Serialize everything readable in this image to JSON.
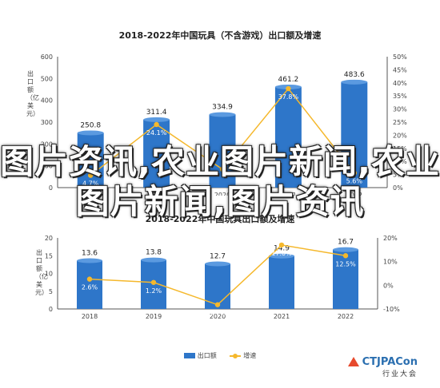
{
  "overlay_text": "图片资讯,农业图片新闻,农业图片新闻,图片资讯",
  "brand": {
    "name": "CTJPACon",
    "sub": "行业大会"
  },
  "colors": {
    "bar": "#2e76c9",
    "line": "#f5b82c"
  },
  "chart_data": [
    {
      "type": "bar",
      "title": "2018-2022年中国玩具（不含游戏）出口额及增速",
      "categories": [
        "2018",
        "2019",
        "2020",
        "2021",
        "2022"
      ],
      "series": [
        {
          "name": "出口额",
          "kind": "bar",
          "axis": "left",
          "values": [
            250.8,
            311.4,
            334.9,
            461.2,
            483.6
          ],
          "labels": [
            "250.8",
            "311.4",
            "334.9",
            "461.2",
            "483.6"
          ]
        },
        {
          "name": "增速",
          "kind": "line",
          "axis": "right",
          "values": [
            4.7,
            24.1,
            7.0,
            37.8,
            5.6
          ],
          "labels": [
            "4.7%",
            "24.1%",
            "",
            "37.8%",
            "5.6%"
          ]
        }
      ],
      "ylabel": "出口额（亿美元）",
      "ylim": [
        0,
        600
      ],
      "yticks": [
        "0",
        "100",
        "200",
        "300",
        "400",
        "500",
        "600"
      ],
      "y2lim": [
        0,
        50
      ],
      "y2ticks": [
        "0%",
        "5%",
        "10%",
        "15%",
        "20%",
        "25%",
        "30%",
        "35%",
        "40%",
        "45%",
        "50%"
      ]
    },
    {
      "type": "bar",
      "title": "2018-2022年中国玩具出口额及增速",
      "categories": [
        "2018",
        "2019",
        "2020",
        "2021",
        "2022"
      ],
      "series": [
        {
          "name": "出口额",
          "kind": "bar",
          "axis": "left",
          "values": [
            13.6,
            13.8,
            12.7,
            14.9,
            16.7
          ],
          "labels": [
            "13.6",
            "13.8",
            "12.7",
            "14.9",
            "16.7"
          ]
        },
        {
          "name": "增速",
          "kind": "line",
          "axis": "right",
          "values": [
            2.6,
            1.2,
            -8.2,
            17.0,
            12.5
          ],
          "labels": [
            "2.6%",
            "1.2%",
            "-8.2%",
            "17.0%",
            "12.5%"
          ]
        }
      ],
      "ylabel": "出口额（亿美元）",
      "ylim": [
        0,
        20
      ],
      "yticks": [
        "0",
        "5",
        "10",
        "15",
        "20"
      ],
      "y2lim": [
        -10,
        20
      ],
      "y2ticks": [
        "-10%",
        "0%",
        "10%",
        "20%"
      ],
      "legend": [
        "出口额",
        "增速"
      ]
    }
  ]
}
